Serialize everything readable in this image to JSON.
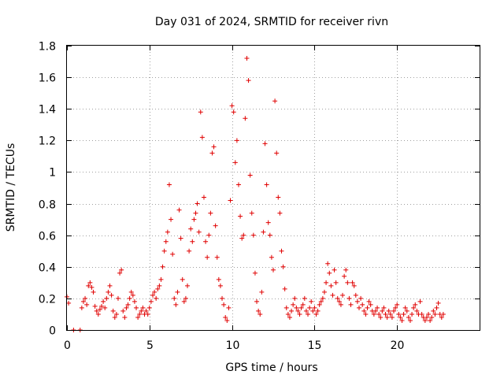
{
  "chart_data": {
    "type": "scatter",
    "title": "Day 031 of 2024, SRMTID for receiver rivn",
    "xlabel": "GPS time / hours",
    "ylabel": "SRMTID / TECUs",
    "xlim": [
      0,
      25
    ],
    "ylim": [
      0,
      1.8
    ],
    "xticks": [
      0,
      5,
      10,
      15,
      20
    ],
    "xtick_labels": [
      "0",
      "5",
      "10",
      "15",
      "20"
    ],
    "yticks": [
      0,
      0.2,
      0.4,
      0.6,
      0.8,
      1.0,
      1.2,
      1.4,
      1.6,
      1.8
    ],
    "ytick_labels": [
      "0",
      "0.2",
      "0.4",
      "0.6",
      "0.8",
      "1",
      "1.2",
      "1.4",
      "1.6",
      "1.8"
    ],
    "grid": true,
    "marker": "plus",
    "color": "#e00000",
    "series": [
      {
        "name": "rivn",
        "x": [
          0.0,
          0.1,
          0.4,
          0.8,
          0.9,
          1.0,
          1.1,
          1.2,
          1.3,
          1.4,
          1.5,
          1.6,
          1.7,
          1.8,
          1.9,
          2.0,
          2.1,
          2.2,
          2.3,
          2.4,
          2.5,
          2.6,
          2.7,
          2.8,
          2.9,
          3.0,
          3.1,
          3.2,
          3.3,
          3.4,
          3.5,
          3.6,
          3.7,
          3.8,
          3.9,
          4.0,
          4.1,
          4.2,
          4.3,
          4.4,
          4.5,
          4.6,
          4.7,
          4.8,
          4.9,
          5.0,
          5.1,
          5.2,
          5.3,
          5.4,
          5.5,
          5.6,
          5.7,
          5.8,
          5.9,
          6.0,
          6.1,
          6.2,
          6.3,
          6.4,
          6.5,
          6.6,
          6.7,
          6.8,
          6.9,
          7.0,
          7.1,
          7.2,
          7.3,
          7.4,
          7.5,
          7.6,
          7.7,
          7.8,
          7.9,
          8.0,
          8.1,
          8.2,
          8.3,
          8.4,
          8.5,
          8.6,
          8.7,
          8.8,
          8.9,
          9.0,
          9.1,
          9.2,
          9.3,
          9.4,
          9.5,
          9.6,
          9.7,
          9.8,
          9.9,
          10.0,
          10.1,
          10.2,
          10.3,
          10.4,
          10.5,
          10.6,
          10.7,
          10.8,
          10.9,
          11.0,
          11.1,
          11.2,
          11.3,
          11.4,
          11.5,
          11.6,
          11.7,
          11.8,
          11.9,
          12.0,
          12.1,
          12.2,
          12.3,
          12.4,
          12.5,
          12.6,
          12.7,
          12.8,
          12.9,
          13.0,
          13.1,
          13.2,
          13.3,
          13.4,
          13.5,
          13.6,
          13.7,
          13.8,
          13.9,
          14.0,
          14.1,
          14.2,
          14.3,
          14.4,
          14.5,
          14.6,
          14.7,
          14.8,
          14.9,
          15.0,
          15.1,
          15.2,
          15.3,
          15.4,
          15.5,
          15.6,
          15.7,
          15.8,
          15.9,
          16.0,
          16.1,
          16.2,
          16.3,
          16.4,
          16.5,
          16.6,
          16.7,
          16.8,
          16.9,
          17.0,
          17.1,
          17.2,
          17.3,
          17.4,
          17.5,
          17.6,
          17.7,
          17.8,
          17.9,
          18.0,
          18.1,
          18.2,
          18.3,
          18.4,
          18.5,
          18.6,
          18.7,
          18.8,
          18.9,
          19.0,
          19.1,
          19.2,
          19.3,
          19.4,
          19.5,
          19.6,
          19.7,
          19.8,
          19.9,
          20.0,
          20.1,
          20.2,
          20.3,
          20.4,
          20.5,
          20.6,
          20.7,
          20.8,
          20.9,
          21.0,
          21.1,
          21.2,
          21.3,
          21.4,
          21.5,
          21.6,
          21.7,
          21.8,
          21.9,
          22.0,
          22.1,
          22.2,
          22.3,
          22.4,
          22.5,
          22.6,
          22.7,
          22.8
        ],
        "y": [
          0.21,
          0.17,
          0.0,
          0.0,
          0.14,
          0.18,
          0.2,
          0.16,
          0.28,
          0.3,
          0.27,
          0.24,
          0.15,
          0.12,
          0.1,
          0.13,
          0.15,
          0.18,
          0.14,
          0.2,
          0.24,
          0.28,
          0.22,
          0.12,
          0.08,
          0.1,
          0.2,
          0.36,
          0.38,
          0.12,
          0.08,
          0.14,
          0.16,
          0.2,
          0.24,
          0.22,
          0.18,
          0.14,
          0.08,
          0.1,
          0.12,
          0.14,
          0.1,
          0.12,
          0.1,
          0.14,
          0.18,
          0.22,
          0.24,
          0.2,
          0.26,
          0.28,
          0.32,
          0.4,
          0.5,
          0.56,
          0.62,
          0.92,
          0.7,
          0.48,
          0.2,
          0.16,
          0.24,
          0.76,
          0.58,
          0.32,
          0.18,
          0.2,
          0.28,
          0.5,
          0.64,
          0.56,
          0.7,
          0.74,
          0.8,
          0.62,
          1.38,
          1.22,
          0.84,
          0.56,
          0.46,
          0.6,
          0.74,
          1.12,
          1.16,
          0.66,
          0.46,
          0.32,
          0.28,
          0.2,
          0.16,
          0.08,
          0.06,
          0.14,
          0.82,
          1.42,
          1.38,
          1.06,
          1.2,
          0.92,
          0.72,
          0.58,
          0.6,
          1.34,
          1.72,
          1.58,
          0.98,
          0.74,
          0.6,
          0.36,
          0.18,
          0.12,
          0.1,
          0.24,
          0.62,
          1.18,
          0.92,
          0.68,
          0.6,
          0.46,
          0.38,
          1.45,
          1.12,
          0.84,
          0.74,
          0.5,
          0.4,
          0.26,
          0.14,
          0.1,
          0.08,
          0.12,
          0.16,
          0.2,
          0.14,
          0.12,
          0.1,
          0.14,
          0.16,
          0.2,
          0.12,
          0.1,
          0.14,
          0.18,
          0.12,
          0.14,
          0.1,
          0.12,
          0.16,
          0.18,
          0.2,
          0.24,
          0.3,
          0.42,
          0.36,
          0.28,
          0.22,
          0.38,
          0.3,
          0.2,
          0.18,
          0.16,
          0.22,
          0.34,
          0.38,
          0.3,
          0.2,
          0.16,
          0.3,
          0.28,
          0.22,
          0.18,
          0.14,
          0.2,
          0.16,
          0.12,
          0.1,
          0.14,
          0.18,
          0.16,
          0.12,
          0.1,
          0.12,
          0.14,
          0.1,
          0.08,
          0.12,
          0.14,
          0.1,
          0.08,
          0.12,
          0.1,
          0.08,
          0.12,
          0.14,
          0.16,
          0.1,
          0.08,
          0.06,
          0.1,
          0.14,
          0.12,
          0.08,
          0.06,
          0.1,
          0.14,
          0.16,
          0.12,
          0.1,
          0.18,
          0.1,
          0.08,
          0.06,
          0.08,
          0.1,
          0.06,
          0.08,
          0.12,
          0.1,
          0.14,
          0.17,
          0.1,
          0.08,
          0.1
        ]
      }
    ]
  }
}
